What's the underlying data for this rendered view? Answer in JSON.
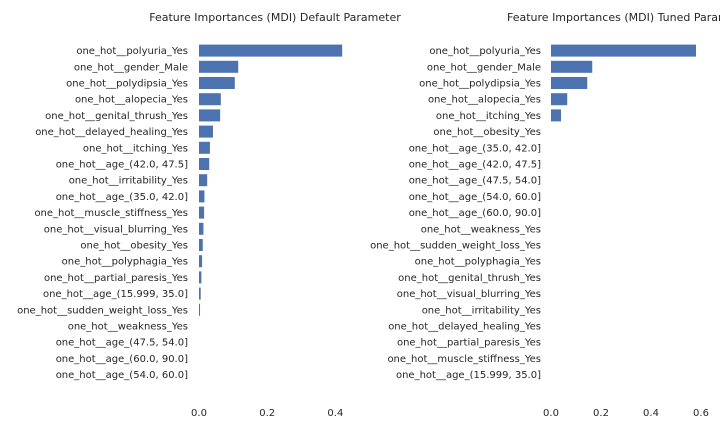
{
  "chart_data": [
    {
      "type": "bar",
      "orientation": "horizontal",
      "title": "Feature Importances (MDI) Default Parameter",
      "categories": [
        "one_hot__polyuria_Yes",
        "one_hot__gender_Male",
        "one_hot__polydipsia_Yes",
        "one_hot__alopecia_Yes",
        "one_hot__genital_thrush_Yes",
        "one_hot__delayed_healing_Yes",
        "one_hot__itching_Yes",
        "one_hot__age_(42.0, 47.5]",
        "one_hot__irritability_Yes",
        "one_hot__age_(35.0, 42.0]",
        "one_hot__muscle_stiffness_Yes",
        "one_hot__visual_blurring_Yes",
        "one_hot__obesity_Yes",
        "one_hot__polyphagia_Yes",
        "one_hot__partial_paresis_Yes",
        "one_hot__age_(15.999, 35.0]",
        "one_hot__sudden_weight_loss_Yes",
        "one_hot__weakness_Yes",
        "one_hot__age_(47.5, 54.0]",
        "one_hot__age_(60.0, 90.0]",
        "one_hot__age_(54.0, 60.0]"
      ],
      "values": [
        0.42,
        0.115,
        0.105,
        0.064,
        0.062,
        0.041,
        0.032,
        0.03,
        0.024,
        0.016,
        0.015,
        0.013,
        0.011,
        0.009,
        0.007,
        0.005,
        0.003,
        0.0,
        0.0,
        0.0,
        0.0
      ],
      "xticks": [
        "0.0",
        "0.2",
        "0.4"
      ],
      "xtick_values": [
        0.0,
        0.2,
        0.4
      ],
      "xlim": [
        0,
        0.44
      ],
      "grid": false,
      "bar_color": "#4c72b0"
    },
    {
      "type": "bar",
      "orientation": "horizontal",
      "title": "Feature Importances (MDI) Tuned Parar",
      "categories": [
        "one_hot__polyuria_Yes",
        "one_hot__gender_Male",
        "one_hot__polydipsia_Yes",
        "one_hot__alopecia_Yes",
        "one_hot__itching_Yes",
        "one_hot__obesity_Yes",
        "one_hot__age_(35.0, 42.0]",
        "one_hot__age_(42.0, 47.5]",
        "one_hot__age_(47.5, 54.0]",
        "one_hot__age_(54.0, 60.0]",
        "one_hot__age_(60.0, 90.0]",
        "one_hot__weakness_Yes",
        "one_hot__sudden_weight_loss_Yes",
        "one_hot__polyphagia_Yes",
        "one_hot__genital_thrush_Yes",
        "one_hot__visual_blurring_Yes",
        "one_hot__irritability_Yes",
        "one_hot__delayed_healing_Yes",
        "one_hot__partial_paresis_Yes",
        "one_hot__muscle_stiffness_Yes",
        "one_hot__age_(15.999, 35.0]"
      ],
      "values": [
        0.58,
        0.165,
        0.145,
        0.065,
        0.04,
        0.0,
        0.0,
        0.0,
        0.0,
        0.0,
        0.0,
        0.0,
        0.0,
        0.0,
        0.0,
        0.0,
        0.0,
        0.0,
        0.0,
        0.0,
        0.0
      ],
      "xticks": [
        "0.0",
        "0.2",
        "0.4",
        "0.6"
      ],
      "xtick_values": [
        0.0,
        0.2,
        0.4,
        0.6
      ],
      "xlim": [
        0,
        0.6
      ],
      "grid": false,
      "bar_color": "#4c72b0"
    }
  ]
}
